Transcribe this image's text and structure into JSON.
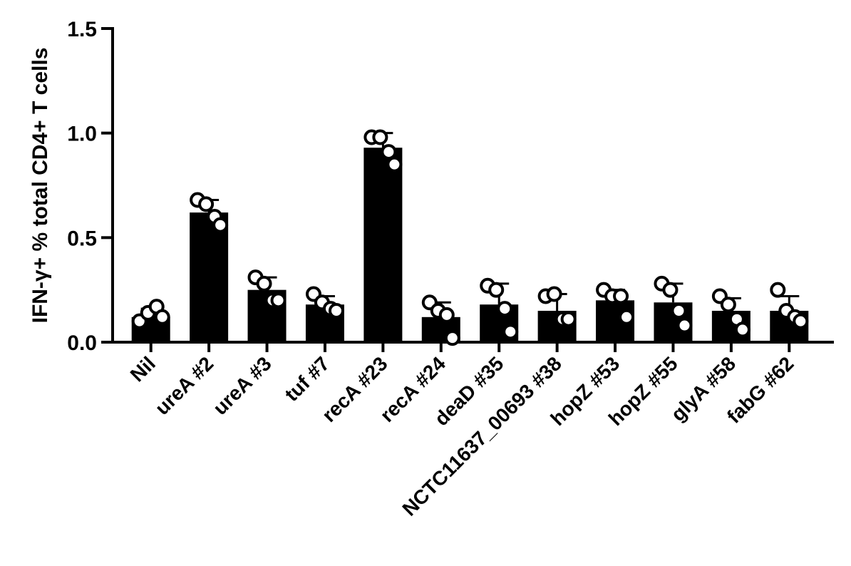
{
  "chart_data": {
    "type": "bar",
    "y_label": "IFN-γ+ % total CD4+ T cells",
    "categories": [
      "Nil",
      "ureA #2",
      "ureA #3",
      "tuf #7",
      "recA #23",
      "recA #24",
      "deaD #35",
      "NCTC11637_00693 #38",
      "hopZ #53",
      "hopZ #55",
      "glyA #58",
      "fabG #62"
    ],
    "values": [
      0.12,
      0.62,
      0.25,
      0.18,
      0.93,
      0.12,
      0.18,
      0.15,
      0.2,
      0.19,
      0.15,
      0.15
    ],
    "errors": [
      0.04,
      0.06,
      0.06,
      0.04,
      0.07,
      0.07,
      0.1,
      0.08,
      0.05,
      0.09,
      0.06,
      0.07
    ],
    "points": [
      [
        0.1,
        0.14,
        0.17,
        0.12
      ],
      [
        0.68,
        0.66,
        0.6,
        0.56
      ],
      [
        0.31,
        0.28,
        0.2,
        0.2
      ],
      [
        0.23,
        0.19,
        0.16,
        0.15
      ],
      [
        0.98,
        0.98,
        0.91,
        0.85
      ],
      [
        0.19,
        0.15,
        0.13,
        0.02
      ],
      [
        0.27,
        0.25,
        0.16,
        0.05
      ],
      [
        0.22,
        0.23,
        0.11,
        0.11
      ],
      [
        0.25,
        0.22,
        0.22,
        0.12
      ],
      [
        0.28,
        0.25,
        0.15,
        0.08
      ],
      [
        0.22,
        0.18,
        0.11,
        0.06
      ],
      [
        0.25,
        0.15,
        0.12,
        0.1
      ]
    ],
    "color": "#000000",
    "ylim": [
      0,
      1.5
    ],
    "yticks": [
      {
        "value": 0,
        "label": "0.0"
      },
      0.5,
      {
        "value": 1,
        "label": "1.0"
      },
      1.5
    ]
  }
}
